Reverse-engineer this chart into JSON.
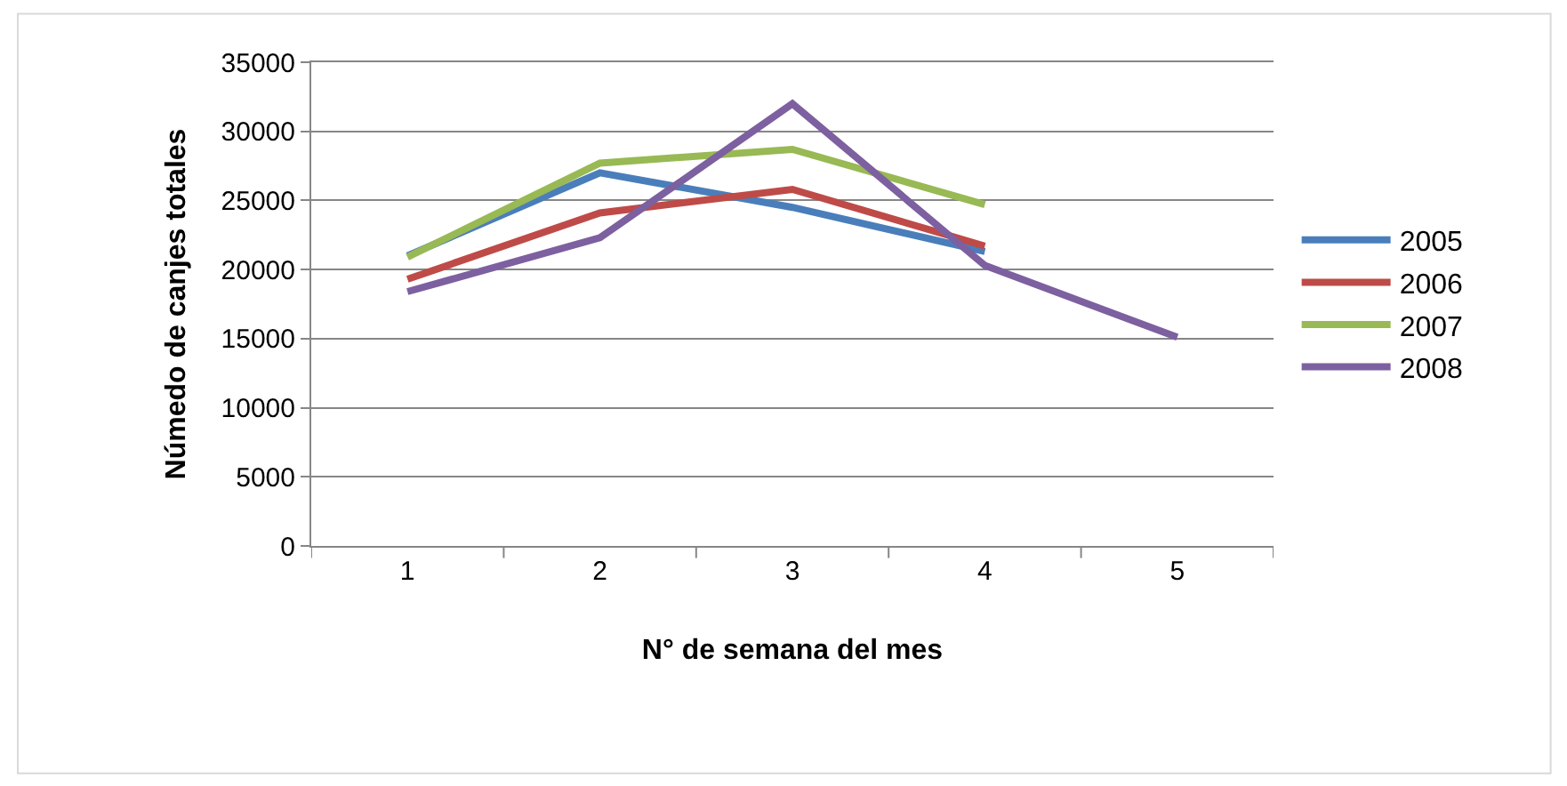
{
  "chart_data": {
    "type": "line",
    "xlabel": "N° de semana del mes",
    "ylabel": "Númedo de canjes totales",
    "categories": [
      "1",
      "2",
      "3",
      "4",
      "5"
    ],
    "series": [
      {
        "name": "2005",
        "color": "#4a7ebb",
        "values": [
          21000,
          27000,
          24500,
          21300,
          null
        ]
      },
      {
        "name": "2006",
        "color": "#be4b48",
        "values": [
          19300,
          24100,
          25800,
          21700,
          null
        ]
      },
      {
        "name": "2007",
        "color": "#98b954",
        "values": [
          20900,
          27700,
          28700,
          24700,
          null
        ]
      },
      {
        "name": "2008",
        "color": "#7d60a0",
        "values": [
          18400,
          22300,
          32000,
          20300,
          15100
        ]
      }
    ],
    "ylim": [
      0,
      35000
    ],
    "yticks": [
      0,
      5000,
      10000,
      15000,
      20000,
      25000,
      30000,
      35000
    ],
    "grid": "y",
    "legend": "right",
    "marker": "none",
    "line_style": "solid"
  }
}
